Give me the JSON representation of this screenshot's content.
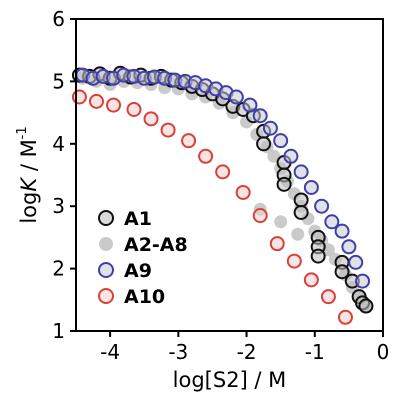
{
  "chart_data": {
    "type": "scatter",
    "xlabel": {
      "prefix": "log[S2] / M"
    },
    "ylabel": {
      "main": "log",
      "italic": "K",
      "unit": " / M",
      "sup": "-1"
    },
    "xlim": [
      -4.5,
      0
    ],
    "ylim": [
      1,
      6
    ],
    "xticks": [
      -4,
      -3,
      -2,
      -1,
      0
    ],
    "yticks": [
      1,
      2,
      3,
      4,
      5,
      6
    ],
    "xtick_labels": [
      "-4",
      "-3",
      "-2",
      "-1",
      "0"
    ],
    "ytick_labels": [
      "1",
      "2",
      "3",
      "4",
      "5",
      "6"
    ],
    "grid": false,
    "legend_position": "lower-left",
    "series": [
      {
        "name": "A1",
        "marker": "open-circle",
        "edge_color": "#111111",
        "fill_color": "#bdbdbd",
        "points": [
          [
            -4.45,
            5.1
          ],
          [
            -4.3,
            5.08
          ],
          [
            -4.15,
            5.12
          ],
          [
            -4.0,
            5.05
          ],
          [
            -3.85,
            5.13
          ],
          [
            -3.7,
            5.07
          ],
          [
            -3.55,
            5.1
          ],
          [
            -3.4,
            5.05
          ],
          [
            -3.25,
            5.08
          ],
          [
            -3.1,
            5.02
          ],
          [
            -2.95,
            4.98
          ],
          [
            -2.8,
            4.92
          ],
          [
            -2.65,
            4.87
          ],
          [
            -2.5,
            4.8
          ],
          [
            -2.35,
            4.72
          ],
          [
            -2.2,
            4.6
          ],
          [
            -2.05,
            4.55
          ],
          [
            -1.9,
            4.45
          ],
          [
            -1.75,
            4.2
          ],
          [
            -1.75,
            4.0
          ],
          [
            -1.45,
            3.7
          ],
          [
            -1.45,
            3.5
          ],
          [
            -1.45,
            3.35
          ],
          [
            -1.2,
            3.1
          ],
          [
            -1.2,
            2.9
          ],
          [
            -0.95,
            2.5
          ],
          [
            -0.95,
            2.35
          ],
          [
            -0.95,
            2.2
          ],
          [
            -0.6,
            2.1
          ],
          [
            -0.6,
            1.95
          ],
          [
            -0.45,
            1.8
          ],
          [
            -0.35,
            1.55
          ],
          [
            -0.3,
            1.45
          ],
          [
            -0.25,
            1.4
          ]
        ]
      },
      {
        "name": "A2-A8",
        "marker": "filled-circle",
        "edge_color": "#c4c4c4",
        "fill_color": "#c4c4c4",
        "points": [
          [
            -4.4,
            5.05
          ],
          [
            -4.2,
            5.0
          ],
          [
            -4.0,
            4.95
          ],
          [
            -3.8,
            5.0
          ],
          [
            -3.6,
            4.98
          ],
          [
            -3.4,
            4.95
          ],
          [
            -3.2,
            4.9
          ],
          [
            -3.0,
            4.88
          ],
          [
            -2.8,
            4.8
          ],
          [
            -2.6,
            4.75
          ],
          [
            -2.4,
            4.65
          ],
          [
            -2.2,
            4.5
          ],
          [
            -2.0,
            4.35
          ],
          [
            -1.85,
            4.15
          ],
          [
            -1.7,
            3.95
          ],
          [
            -1.6,
            3.8
          ],
          [
            -1.5,
            3.6
          ],
          [
            -1.4,
            3.4
          ],
          [
            -1.3,
            3.2
          ],
          [
            -1.2,
            3.0
          ],
          [
            -1.1,
            2.8
          ],
          [
            -1.0,
            2.6
          ],
          [
            -0.9,
            2.45
          ],
          [
            -0.8,
            2.3
          ],
          [
            -0.7,
            2.15
          ],
          [
            -0.55,
            1.9
          ],
          [
            -0.45,
            1.7
          ],
          [
            -0.35,
            1.55
          ],
          [
            -0.25,
            1.4
          ],
          [
            -1.8,
            2.95
          ],
          [
            -1.5,
            2.75
          ],
          [
            -1.25,
            2.55
          ]
        ]
      },
      {
        "name": "A9",
        "marker": "open-circle",
        "edge_color": "#3f3fa8",
        "fill_color": "#c8c8d8",
        "points": [
          [
            -4.4,
            5.1
          ],
          [
            -4.25,
            5.05
          ],
          [
            -4.1,
            5.08
          ],
          [
            -3.95,
            5.05
          ],
          [
            -3.8,
            5.1
          ],
          [
            -3.65,
            5.08
          ],
          [
            -3.5,
            5.05
          ],
          [
            -3.35,
            5.07
          ],
          [
            -3.2,
            5.05
          ],
          [
            -3.05,
            5.02
          ],
          [
            -2.9,
            5.0
          ],
          [
            -2.75,
            4.98
          ],
          [
            -2.6,
            4.93
          ],
          [
            -2.45,
            4.88
          ],
          [
            -2.3,
            4.82
          ],
          [
            -2.15,
            4.75
          ],
          [
            -1.95,
            4.62
          ],
          [
            -1.8,
            4.45
          ],
          [
            -1.65,
            4.25
          ],
          [
            -1.5,
            4.05
          ],
          [
            -1.35,
            3.8
          ],
          [
            -1.2,
            3.55
          ],
          [
            -1.05,
            3.3
          ],
          [
            -0.9,
            3.0
          ],
          [
            -0.75,
            2.75
          ],
          [
            -0.6,
            2.6
          ],
          [
            -0.5,
            2.35
          ],
          [
            -0.4,
            2.1
          ],
          [
            -0.3,
            1.8
          ]
        ]
      },
      {
        "name": "A10",
        "marker": "open-circle",
        "edge_color": "#d9403a",
        "fill_color": "#efcfcd",
        "points": [
          [
            -4.45,
            4.75
          ],
          [
            -4.2,
            4.68
          ],
          [
            -3.95,
            4.62
          ],
          [
            -3.65,
            4.55
          ],
          [
            -3.4,
            4.4
          ],
          [
            -3.15,
            4.22
          ],
          [
            -2.85,
            4.05
          ],
          [
            -2.6,
            3.8
          ],
          [
            -2.35,
            3.55
          ],
          [
            -2.05,
            3.22
          ],
          [
            -1.8,
            2.85
          ],
          [
            -1.55,
            2.4
          ],
          [
            -1.3,
            2.12
          ],
          [
            -1.05,
            1.82
          ],
          [
            -0.8,
            1.55
          ],
          [
            -0.55,
            1.22
          ]
        ]
      }
    ]
  }
}
